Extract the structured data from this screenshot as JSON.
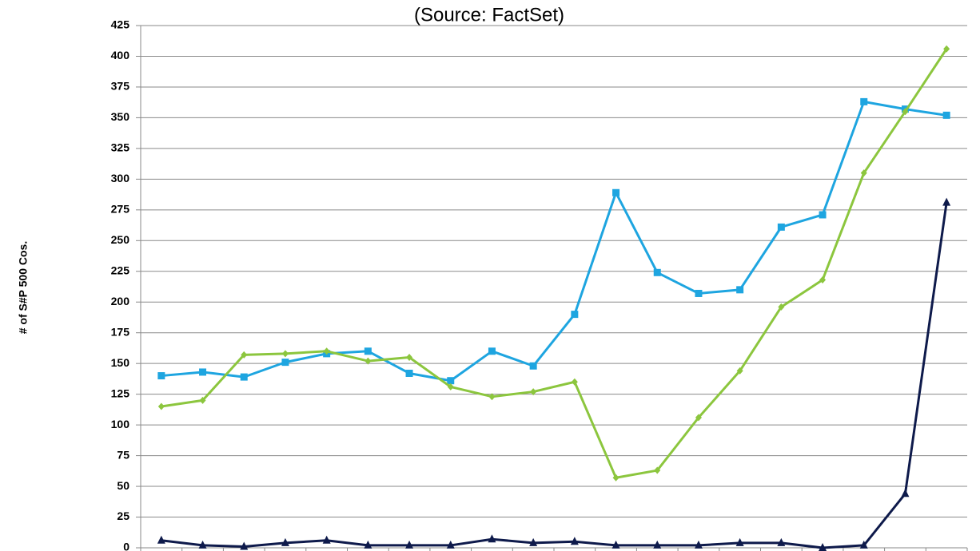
{
  "chart_data": {
    "type": "line",
    "title": "(Source: FactSet)",
    "y_label": "# of S#P 500 Cos.",
    "categories": [
      null,
      null,
      null,
      null,
      null,
      null,
      null,
      null,
      null,
      null,
      null,
      null,
      null,
      null,
      null,
      null,
      null,
      null,
      null,
      null
    ],
    "series": [
      {
        "color": "#1ea5e0",
        "marker": "square",
        "values": [
          140,
          143,
          139,
          151,
          158,
          160,
          142,
          136,
          160,
          148,
          190,
          289,
          224,
          207,
          210,
          261,
          271,
          363,
          357,
          352
        ]
      },
      {
        "color": "#8cc63e",
        "marker": "diamond",
        "values": [
          115,
          120,
          157,
          158,
          160,
          152,
          155,
          131,
          123,
          127,
          135,
          57,
          63,
          106,
          144,
          196,
          218,
          305,
          355,
          406
        ]
      },
      {
        "color": "#0e1a4b",
        "marker": "triangle",
        "values": [
          6,
          2,
          1,
          4,
          6,
          2,
          2,
          2,
          7,
          4,
          5,
          2,
          2,
          2,
          4,
          4,
          0,
          2,
          44,
          281
        ]
      }
    ],
    "ylim": [
      0,
      425
    ],
    "yticks": [
      0,
      25,
      50,
      75,
      100,
      125,
      150,
      175,
      200,
      225,
      250,
      275,
      300,
      325,
      350,
      375,
      400,
      425
    ],
    "grid": true
  }
}
